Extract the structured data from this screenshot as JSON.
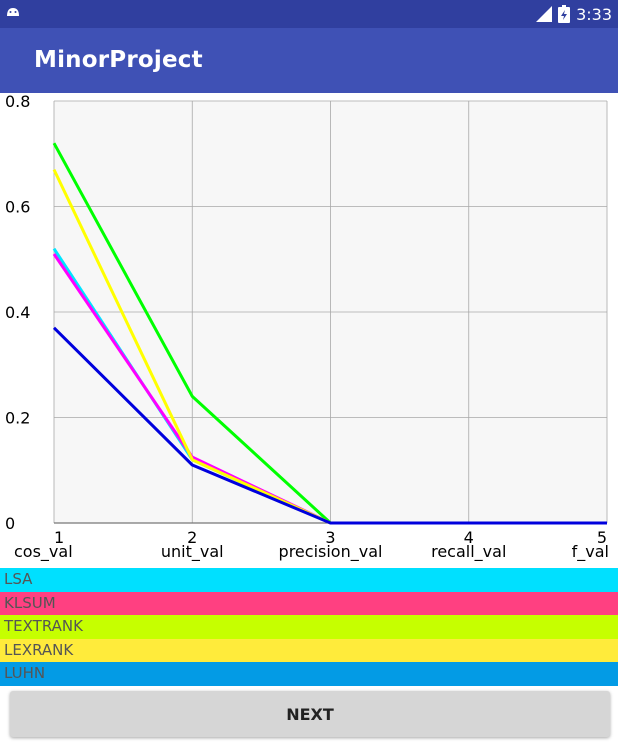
{
  "status_bar": {
    "time": "3:33",
    "icons": [
      "android-icon",
      "signal-icon",
      "battery-icon"
    ]
  },
  "app_bar": {
    "title": "MinorProject"
  },
  "chart_data": {
    "type": "line",
    "x": [
      1,
      2,
      3,
      4,
      5
    ],
    "categories": [
      "cos_val",
      "unit_val",
      "precision_val",
      "recall_val",
      "f_val"
    ],
    "ylim": [
      0,
      0.8
    ],
    "yticks": [
      "0",
      "0.2",
      "0.4",
      "0.6",
      "0.8"
    ],
    "grid": true,
    "series": [
      {
        "name": "LSA",
        "color": "#00E5FF",
        "values": [
          0.52,
          0.12,
          0,
          0,
          0
        ]
      },
      {
        "name": "KLSUM",
        "color": "#FF00FF",
        "values": [
          0.51,
          0.125,
          0,
          0,
          0
        ]
      },
      {
        "name": "TEXTRANK",
        "color": "#00FF00",
        "values": [
          0.72,
          0.24,
          0,
          0,
          0
        ]
      },
      {
        "name": "LEXRANK",
        "color": "#FFFF00",
        "values": [
          0.67,
          0.12,
          0,
          0,
          0
        ]
      },
      {
        "name": "LUHN",
        "color": "#0000DD",
        "values": [
          0.37,
          0.11,
          0,
          0,
          0
        ]
      }
    ]
  },
  "legend": [
    {
      "label": "LSA",
      "bg": "#00E0FF"
    },
    {
      "label": "KLSUM",
      "bg": "#FF4081"
    },
    {
      "label": "TEXTRANK",
      "bg": "#C6FF00"
    },
    {
      "label": "LEXRANK",
      "bg": "#FFEB3B"
    },
    {
      "label": "LUHN",
      "bg": "#039BE5"
    }
  ],
  "next_button": {
    "label": "NEXT"
  }
}
